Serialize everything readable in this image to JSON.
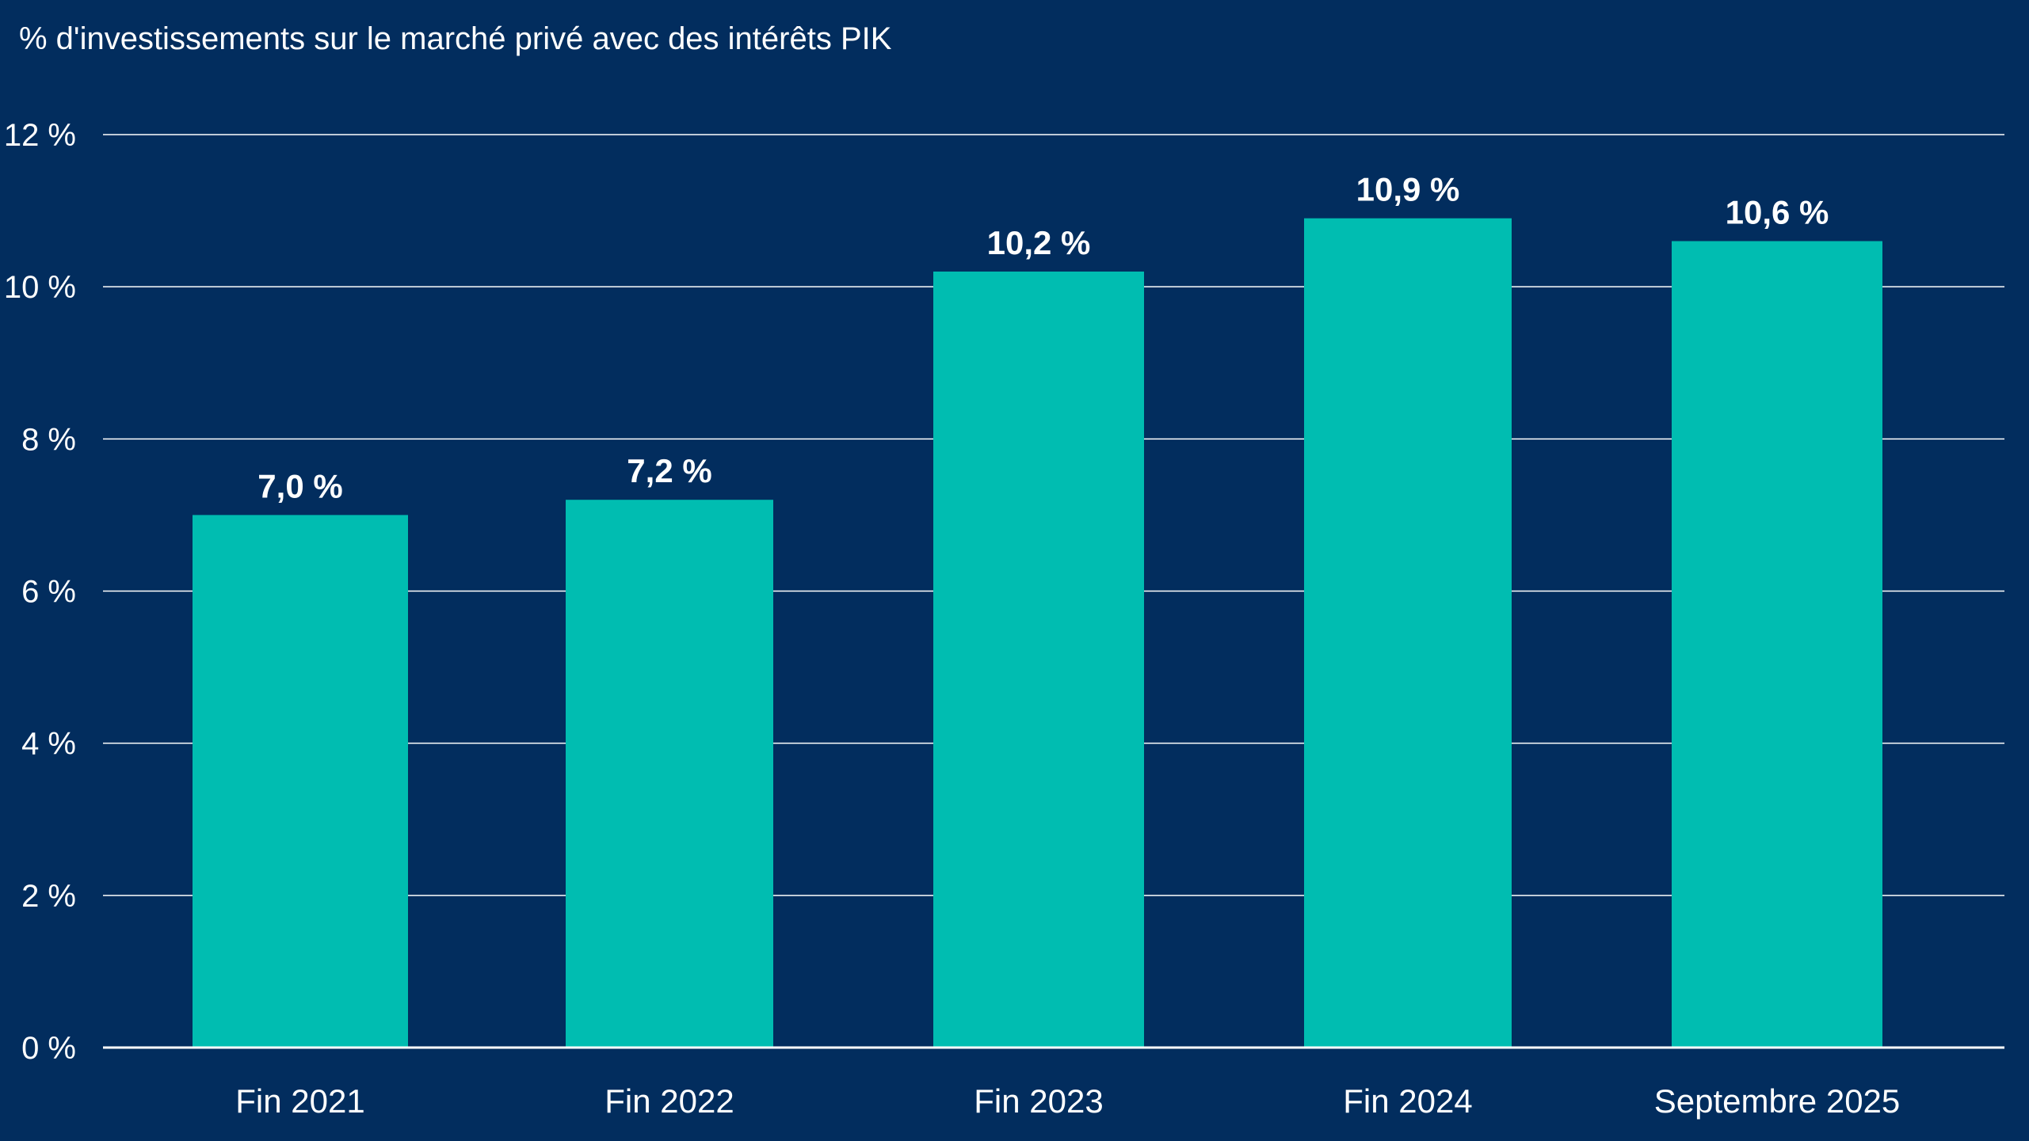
{
  "chart_data": {
    "type": "bar",
    "title": "% d'investissements sur le marché privé avec des intérêts PIK",
    "xlabel": "",
    "ylabel": "",
    "categories": [
      "Fin 2021",
      "Fin 2022",
      "Fin 2023",
      "Fin 2024",
      "Septembre 2025"
    ],
    "values": [
      7.0,
      7.2,
      10.2,
      10.9,
      10.6
    ],
    "data_labels": [
      "7,0 %",
      "7,2 %",
      "10,2 %",
      "10,9 %",
      "10,6 %"
    ],
    "ylim": [
      0,
      12
    ],
    "yticks": [
      0,
      2,
      4,
      6,
      8,
      10,
      12
    ],
    "ytick_labels": [
      "0 %",
      "2 %",
      "4 %",
      "6 %",
      "8 %",
      "10 %",
      "12 %"
    ],
    "grid": true,
    "legend": "none",
    "colors": {
      "background": "#022d5e",
      "bar": "#00bdb1",
      "text": "#ffffff",
      "gridline": "#ffffff"
    }
  }
}
